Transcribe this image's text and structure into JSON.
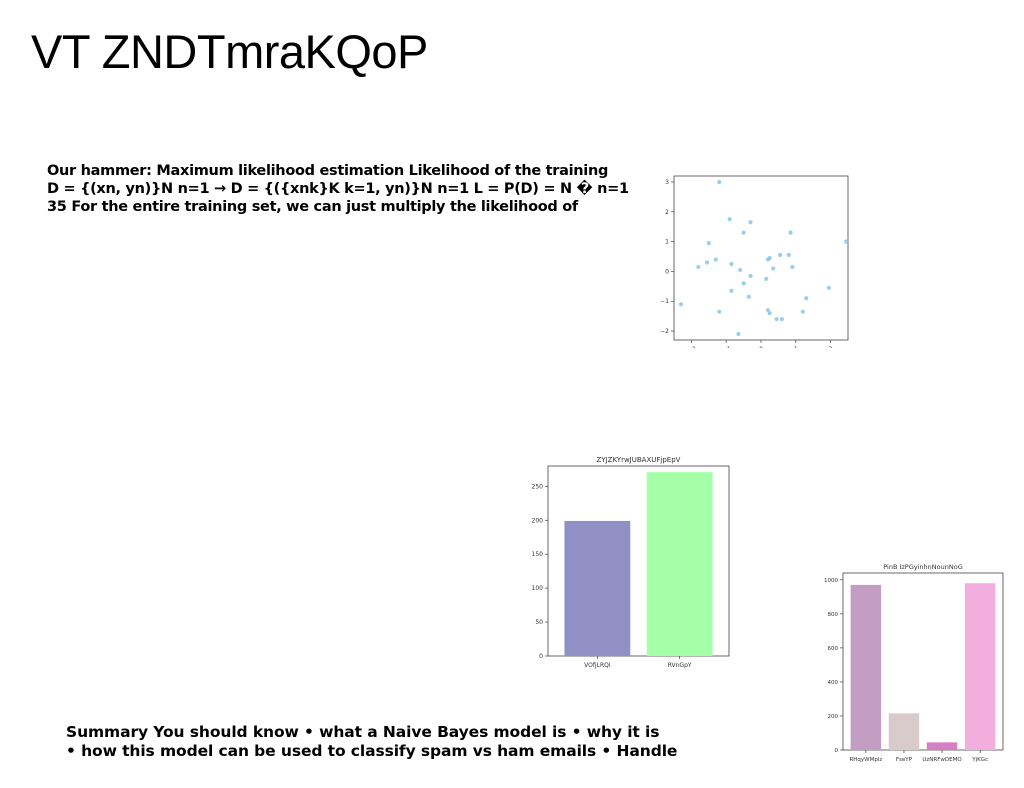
{
  "slide": {
    "title": "VT ZNDTmraKQoP",
    "paragraph1": [
      "Our hammer: Maximum likelihood estimation Likelihood of the training",
      "D = {(xn, yn)}N n=1 → D = {({xnk}K k=1, yn)}N n=1 L = P(D) = N � n=1",
      "35 For the entire training set, we can just multiply the likelihood of"
    ],
    "paragraph2": [
      "Summary You should know • what a Naive Bayes model is • why it is",
      "• how this model can be used to classify spam vs ham emails • Handle"
    ]
  },
  "chart_data": [
    {
      "type": "scatter",
      "title": "",
      "xlabel": "",
      "ylabel": "",
      "xlim": [
        -2.5,
        2.5
      ],
      "ylim": [
        -2.3,
        3.2
      ],
      "xticks": [
        "−2",
        "−1",
        "0",
        "1",
        "2"
      ],
      "yticks": [
        "3",
        "2",
        "1",
        "0",
        "−1",
        "−2"
      ],
      "color": "#87c7e8",
      "x": [
        -1.2,
        -0.9,
        -0.3,
        -1.5,
        -0.5,
        0.85,
        2.45,
        -1.3,
        -1.8,
        -1.55,
        -0.85,
        0.25,
        0.2,
        0.55,
        0.8,
        -0.6,
        -0.3,
        0.35,
        0.9,
        -0.5,
        0.15,
        -0.85,
        -0.35,
        1.95,
        1.3,
        -2.3,
        -1.2,
        0.2,
        0.25,
        1.2,
        0.45,
        0.6,
        -0.65
      ],
      "y": [
        3.0,
        1.75,
        1.65,
        0.95,
        1.3,
        1.3,
        1.0,
        0.4,
        0.15,
        0.3,
        0.25,
        0.45,
        0.4,
        0.55,
        0.55,
        0.05,
        -0.15,
        0.1,
        0.15,
        -0.4,
        -0.25,
        -0.65,
        -0.85,
        -0.55,
        -0.9,
        -1.1,
        -1.35,
        -1.3,
        -1.4,
        -1.35,
        -1.6,
        -1.6,
        -2.1
      ]
    },
    {
      "type": "bar",
      "title": "ZYJZKYrwJUBAXUFjpEpV",
      "categories": [
        "VOfjLRQI",
        "RVnGpY"
      ],
      "values": [
        199,
        271
      ],
      "colors": [
        "#9090c4",
        "#a4ffa8"
      ],
      "ylim": [
        0,
        280
      ],
      "yticks": [
        0,
        50,
        100,
        150,
        200,
        250
      ]
    },
    {
      "type": "bar",
      "title": "PinB IzPGyinhnNounNoG",
      "categories": [
        "RHqyWMplz",
        "FseYP",
        "UzNRFwDEMO",
        "YjKGc"
      ],
      "values": [
        970,
        215,
        45,
        980
      ],
      "colors": [
        "#c49dc4",
        "#d9cbcb",
        "#d77fc4",
        "#f3aee0"
      ],
      "ylim": [
        0,
        1040
      ],
      "yticks": [
        0,
        200,
        400,
        600,
        800,
        1000
      ]
    }
  ]
}
